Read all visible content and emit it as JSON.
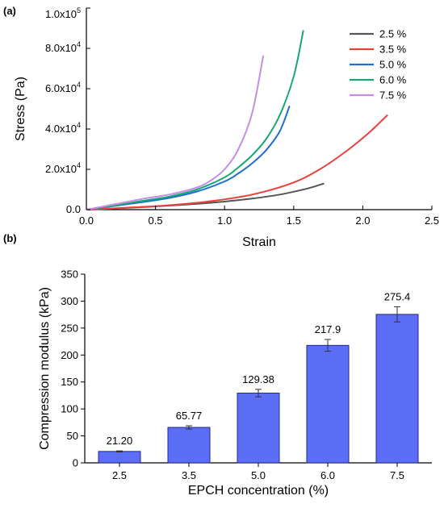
{
  "colors": {
    "axis": "#000000",
    "bar_fill": "#5b6ef5",
    "bar_stroke": "#1f2b8f",
    "error_bar": "#333333"
  },
  "chart_data": [
    {
      "panel_label": "(a)",
      "type": "line",
      "xlabel": "Strain",
      "ylabel": "Stress (Pa)",
      "xlim": [
        0.0,
        2.5
      ],
      "ylim": [
        0,
        100000
      ],
      "x_ticks": [
        "0.0",
        "0.5",
        "1.0",
        "1.5",
        "2.0",
        "2.5"
      ],
      "y_ticks": [
        {
          "value": 0,
          "mantissa": "0.0",
          "exponent": ""
        },
        {
          "value": 20000,
          "mantissa": "2.0x10",
          "exponent": "4"
        },
        {
          "value": 40000,
          "mantissa": "4.0x10",
          "exponent": "4"
        },
        {
          "value": 60000,
          "mantissa": "6.0x10",
          "exponent": "4"
        },
        {
          "value": 80000,
          "mantissa": "8.0x10",
          "exponent": "4"
        },
        {
          "value": 100000,
          "mantissa": "1.0x10",
          "exponent": "5"
        }
      ],
      "grid": false,
      "legend_position": "top-right",
      "series": [
        {
          "name": "2.5 %",
          "color": "#555555",
          "x": [
            0.0,
            0.2,
            0.4,
            0.6,
            0.8,
            1.0,
            1.2,
            1.4,
            1.6,
            1.72
          ],
          "y": [
            0,
            600,
            1200,
            2000,
            2900,
            4000,
            5500,
            7500,
            10500,
            13000
          ]
        },
        {
          "name": "3.5 %",
          "color": "#e8413c",
          "x": [
            0.0,
            0.3,
            0.6,
            0.9,
            1.2,
            1.5,
            1.7,
            1.9,
            2.05,
            2.18
          ],
          "y": [
            0,
            1000,
            2200,
            4200,
            7500,
            13500,
            20500,
            30000,
            38500,
            47000
          ]
        },
        {
          "name": "5.0 %",
          "color": "#1f6fd1",
          "x": [
            0.0,
            0.2,
            0.4,
            0.6,
            0.8,
            1.0,
            1.1,
            1.2,
            1.3,
            1.4,
            1.47
          ],
          "y": [
            0,
            1800,
            3700,
            5800,
            9000,
            14000,
            18000,
            23000,
            29500,
            39000,
            51500
          ]
        },
        {
          "name": "6.0 %",
          "color": "#1aa672",
          "x": [
            0.0,
            0.2,
            0.4,
            0.6,
            0.8,
            1.0,
            1.1,
            1.2,
            1.3,
            1.4,
            1.5,
            1.57
          ],
          "y": [
            0,
            2000,
            4300,
            6500,
            10000,
            16000,
            21000,
            27000,
            35000,
            47000,
            66000,
            89000
          ]
        },
        {
          "name": "7.5 %",
          "color": "#c48ee6",
          "x": [
            0.0,
            0.2,
            0.4,
            0.6,
            0.8,
            0.9,
            1.0,
            1.1,
            1.2,
            1.28
          ],
          "y": [
            0,
            2600,
            5300,
            7500,
            11000,
            14500,
            20000,
            30000,
            48000,
            76500
          ]
        }
      ]
    },
    {
      "panel_label": "(b)",
      "type": "bar",
      "xlabel": "EPCH concentration (%)",
      "ylabel": "Compression modulus (kPa)",
      "categories": [
        "2.5",
        "3.5",
        "5.0",
        "6.0",
        "7.5"
      ],
      "values": [
        21.2,
        65.77,
        129.38,
        217.9,
        275.4
      ],
      "value_labels": [
        "21.20",
        "65.77",
        "129.38",
        "217.9",
        "275.4"
      ],
      "errors": [
        1.0,
        3.0,
        7.0,
        11.0,
        14.0
      ],
      "ylim": [
        0,
        350
      ],
      "y_ticks": [
        "0",
        "50",
        "100",
        "150",
        "200",
        "250",
        "300",
        "350"
      ],
      "grid": false
    }
  ]
}
